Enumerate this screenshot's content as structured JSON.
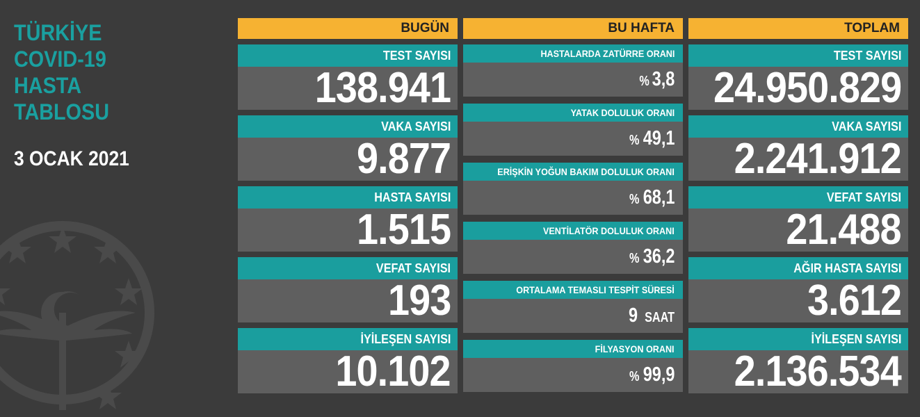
{
  "title_lines": [
    "TÜRKİYE",
    "COVID-19",
    "HASTA",
    "TABLOSU"
  ],
  "date": "3 OCAK 2021",
  "colors": {
    "background": "#3b3b3b",
    "header": "#f6b232",
    "label": "#1a9e9e",
    "value_bg": "#5f5f5f",
    "title": "#1aa0a0"
  },
  "today": {
    "header": "BUGÜN",
    "stats": [
      {
        "label": "TEST SAYISI",
        "value": "138.941"
      },
      {
        "label": "VAKA SAYISI",
        "value": "9.877"
      },
      {
        "label": "HASTA SAYISI",
        "value": "1.515"
      },
      {
        "label": "VEFAT SAYISI",
        "value": "193"
      },
      {
        "label": "İYİLEŞEN SAYISI",
        "value": "10.102"
      }
    ]
  },
  "week": {
    "header": "BU HAFTA",
    "stats": [
      {
        "label": "HASTALARDA ZATÜRRE ORANI",
        "prefix": "%",
        "value": "3,8"
      },
      {
        "label": "YATAK DOLULUK ORANI",
        "prefix": "%",
        "value": "49,1"
      },
      {
        "label": "ERİŞKİN YOĞUN BAKIM DOLULUK ORANI",
        "prefix": "%",
        "value": "68,1"
      },
      {
        "label": "VENTİLATÖR DOLULUK ORANI",
        "prefix": "%",
        "value": "36,2"
      },
      {
        "label": "ORTALAMA TEMASLI TESPİT SÜRESİ",
        "value": "9",
        "suffix": "SAAT"
      },
      {
        "label": "FİLYASYON ORANI",
        "prefix": "%",
        "value": "99,9"
      }
    ]
  },
  "total": {
    "header": "TOPLAM",
    "stats": [
      {
        "label": "TEST SAYISI",
        "value": "24.950.829"
      },
      {
        "label": "VAKA SAYISI",
        "value": "2.241.912"
      },
      {
        "label": "VEFAT SAYISI",
        "value": "21.488"
      },
      {
        "label": "AĞIR HASTA SAYISI",
        "value": "3.612"
      },
      {
        "label": "İYİLEŞEN SAYISI",
        "value": "2.136.534"
      }
    ]
  }
}
